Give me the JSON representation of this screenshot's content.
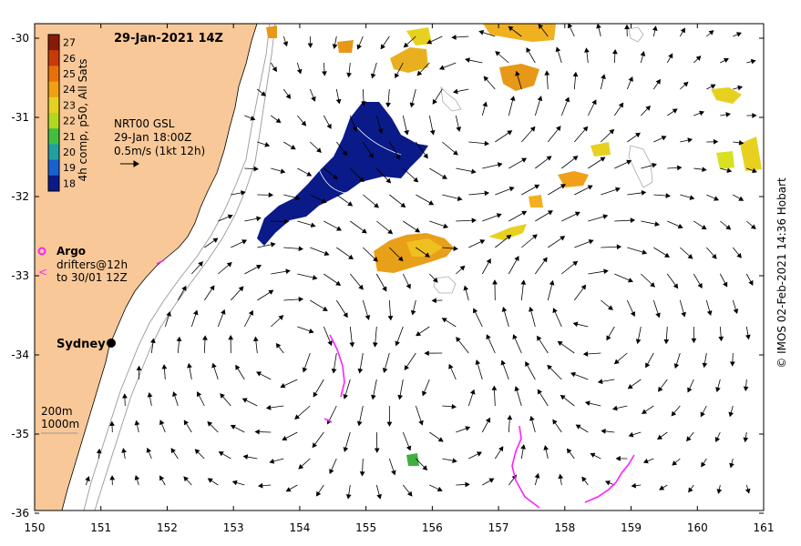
{
  "title": "29-Jan-2021 14Z",
  "colorbar": {
    "label": "4h comp, p50, All Sats",
    "ticks": [
      "27",
      "26",
      "25",
      "24",
      "23",
      "22",
      "21",
      "20",
      "19",
      "18"
    ],
    "colors": [
      "#8a1a08",
      "#c83a08",
      "#e8700a",
      "#f0a010",
      "#e8d020",
      "#b0d820",
      "#40c040",
      "#20a0a0",
      "#1860d0",
      "#0a1a88"
    ]
  },
  "current_label": {
    "line1": "NRT00 GSL",
    "line2": "29-Jan 18:00Z",
    "line3": "0.5m/s (1kt 12h)"
  },
  "legend": {
    "argo": "Argo",
    "drifters1": "drifters@12h",
    "drifters2": "to 30/01 12Z",
    "depth1": "200m",
    "depth2": "1000m"
  },
  "city": "Sydney",
  "x_ticks": [
    "150",
    "151",
    "152",
    "153",
    "154",
    "155",
    "156",
    "157",
    "158",
    "159",
    "160",
    "161"
  ],
  "y_ticks": [
    "-30",
    "-31",
    "-32",
    "-33",
    "-34",
    "-35",
    "-36"
  ],
  "credit": "© IMOS 02-Feb-2021 14:36 Hobart",
  "colors": {
    "land": "#f8c898",
    "ocean": "#ffffff",
    "drifter": "#ff20ff",
    "cold_sst": "#0a1a88",
    "warm_sst": "#e8a018"
  }
}
